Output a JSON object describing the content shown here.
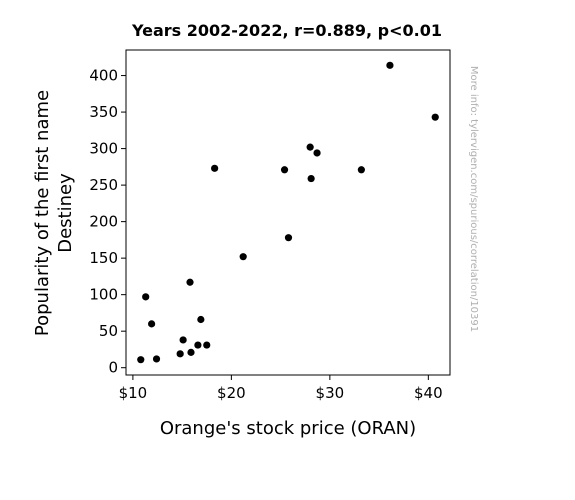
{
  "chart_data": {
    "type": "scatter",
    "title": "Years 2002-2022, r=0.889, p<0.01",
    "xlabel": "Orange's stock price (ORAN)",
    "ylabel_lines": [
      "Popularity of the first name",
      "Destiney"
    ],
    "side_note": "More info: tylervigen.com/spurious/correlation/10391",
    "xlim": [
      9.3,
      42.2
    ],
    "ylim": [
      -10,
      435
    ],
    "x_ticks": [
      10,
      20,
      30,
      40
    ],
    "x_tick_labels": [
      "$10",
      "$20",
      "$30",
      "$40"
    ],
    "y_ticks": [
      0,
      50,
      100,
      150,
      200,
      250,
      300,
      350,
      400
    ],
    "y_tick_labels": [
      "0",
      "50",
      "100",
      "150",
      "200",
      "250",
      "300",
      "350",
      "400"
    ],
    "grid": false,
    "marker_color": "#000000",
    "points": [
      {
        "x": 10.8,
        "y": 11
      },
      {
        "x": 11.3,
        "y": 97
      },
      {
        "x": 11.9,
        "y": 60
      },
      {
        "x": 12.4,
        "y": 12
      },
      {
        "x": 14.8,
        "y": 19
      },
      {
        "x": 15.1,
        "y": 38
      },
      {
        "x": 15.8,
        "y": 117
      },
      {
        "x": 15.9,
        "y": 21
      },
      {
        "x": 16.6,
        "y": 31
      },
      {
        "x": 16.9,
        "y": 66
      },
      {
        "x": 17.5,
        "y": 31
      },
      {
        "x": 18.3,
        "y": 273
      },
      {
        "x": 21.2,
        "y": 152
      },
      {
        "x": 25.4,
        "y": 271
      },
      {
        "x": 25.8,
        "y": 178
      },
      {
        "x": 28.0,
        "y": 302
      },
      {
        "x": 28.1,
        "y": 259
      },
      {
        "x": 28.7,
        "y": 294
      },
      {
        "x": 33.2,
        "y": 271
      },
      {
        "x": 36.1,
        "y": 414
      },
      {
        "x": 40.7,
        "y": 343
      }
    ]
  }
}
